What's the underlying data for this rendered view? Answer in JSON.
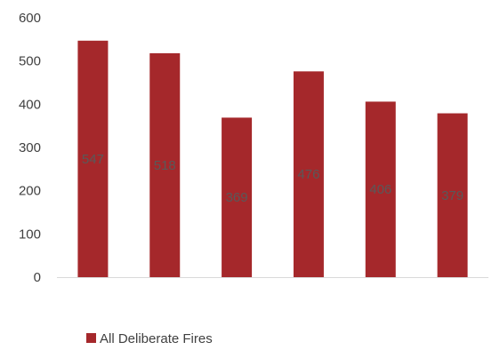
{
  "chart_data": {
    "type": "bar",
    "title": "",
    "xlabel": "",
    "ylabel": "",
    "categories": [
      "",
      "",
      "",
      "",
      "",
      ""
    ],
    "series": [
      {
        "name": "All Deliberate Fires",
        "color": "#A5282B",
        "values": [
          547,
          518,
          369,
          476,
          406,
          379
        ]
      }
    ],
    "data_labels": [
      "547",
      "518",
      "369",
      "476",
      "406",
      "379"
    ],
    "ylim": [
      0,
      600
    ],
    "yticks": [
      0,
      100,
      200,
      300,
      400,
      500,
      600
    ],
    "ytick_labels": [
      "0",
      "100",
      "200",
      "300",
      "400",
      "500",
      "600"
    ],
    "grid": false,
    "legend": "bottom-left"
  }
}
